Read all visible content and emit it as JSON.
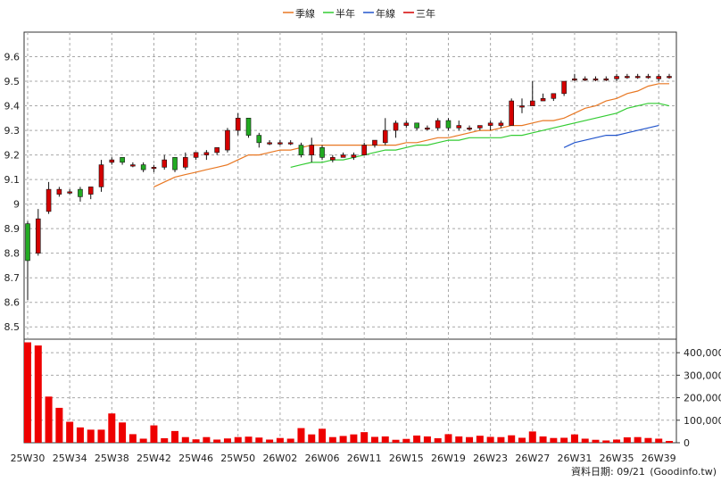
{
  "footer": {
    "date_label": "資料日期: 09/21",
    "source": "(Goodinfo.tw)"
  },
  "colors": {
    "up": "#d40000",
    "down": "#22aa22",
    "quarter": "#e87722",
    "half": "#33cc33",
    "year": "#2255cc",
    "three": "#d40000",
    "grid": "#a8a8a8",
    "volume": "#ee0000"
  },
  "chart_data": [
    {
      "type": "candlestick",
      "legend": [
        {
          "name": "季線",
          "color": "#e87722"
        },
        {
          "name": "半年",
          "color": "#33cc33"
        },
        {
          "name": "年線",
          "color": "#2255cc"
        },
        {
          "name": "三年",
          "color": "#d40000"
        }
      ],
      "legend_position": "top-center",
      "grid": true,
      "ylim": [
        8.45,
        9.7
      ],
      "yticks": [
        "8.5",
        "8.6",
        "8.7",
        "8.8",
        "8.9",
        "9",
        "9.1",
        "9.2",
        "9.3",
        "9.4",
        "9.5",
        "9.6"
      ],
      "xticks": [
        {
          "index": 0,
          "label": "25W30"
        },
        {
          "index": 4,
          "label": "25W34"
        },
        {
          "index": 8,
          "label": "25W38"
        },
        {
          "index": 12,
          "label": "25W42"
        },
        {
          "index": 16,
          "label": "25W46"
        },
        {
          "index": 20,
          "label": "25W50"
        },
        {
          "index": 24,
          "label": "26W02"
        },
        {
          "index": 28,
          "label": "26W06"
        },
        {
          "index": 32,
          "label": "26W11"
        },
        {
          "index": 36,
          "label": "26W15"
        },
        {
          "index": 40,
          "label": "26W19"
        },
        {
          "index": 44,
          "label": "26W23"
        },
        {
          "index": 48,
          "label": "26W27"
        },
        {
          "index": 52,
          "label": "26W31"
        },
        {
          "index": 56,
          "label": "26W35"
        },
        {
          "index": 60,
          "label": "26W39"
        }
      ],
      "candles": [
        [
          8.92,
          8.93,
          8.61,
          8.77
        ],
        [
          8.8,
          8.98,
          8.79,
          8.94
        ],
        [
          8.97,
          9.09,
          8.96,
          9.06
        ],
        [
          9.04,
          9.07,
          9.03,
          9.06
        ],
        [
          9.05,
          9.06,
          9.04,
          9.05
        ],
        [
          9.06,
          9.07,
          9.01,
          9.03
        ],
        [
          9.04,
          9.07,
          9.02,
          9.07
        ],
        [
          9.07,
          9.18,
          9.05,
          9.16
        ],
        [
          9.17,
          9.19,
          9.16,
          9.18
        ],
        [
          9.19,
          9.19,
          9.16,
          9.17
        ],
        [
          9.16,
          9.17,
          9.15,
          9.16
        ],
        [
          9.16,
          9.17,
          9.13,
          9.14
        ],
        [
          9.15,
          9.16,
          9.13,
          9.15
        ],
        [
          9.15,
          9.2,
          9.14,
          9.18
        ],
        [
          9.19,
          9.19,
          9.13,
          9.14
        ],
        [
          9.15,
          9.21,
          9.14,
          9.19
        ],
        [
          9.19,
          9.21,
          9.18,
          9.21
        ],
        [
          9.2,
          9.22,
          9.18,
          9.21
        ],
        [
          9.21,
          9.23,
          9.2,
          9.23
        ],
        [
          9.22,
          9.31,
          9.21,
          9.3
        ],
        [
          9.3,
          9.37,
          9.28,
          9.35
        ],
        [
          9.35,
          9.35,
          9.27,
          9.28
        ],
        [
          9.28,
          9.29,
          9.23,
          9.25
        ],
        [
          9.25,
          9.26,
          9.24,
          9.25
        ],
        [
          9.25,
          9.26,
          9.24,
          9.25
        ],
        [
          9.25,
          9.26,
          9.24,
          9.25
        ],
        [
          9.24,
          9.25,
          9.19,
          9.2
        ],
        [
          9.2,
          9.27,
          9.17,
          9.24
        ],
        [
          9.23,
          9.24,
          9.18,
          9.19
        ],
        [
          9.18,
          9.2,
          9.17,
          9.19
        ],
        [
          9.19,
          9.21,
          9.19,
          9.2
        ],
        [
          9.19,
          9.21,
          9.18,
          9.2
        ],
        [
          9.2,
          9.25,
          9.2,
          9.24
        ],
        [
          9.24,
          9.26,
          9.23,
          9.26
        ],
        [
          9.25,
          9.35,
          9.24,
          9.3
        ],
        [
          9.3,
          9.34,
          9.27,
          9.33
        ],
        [
          9.32,
          9.34,
          9.31,
          9.33
        ],
        [
          9.33,
          9.33,
          9.3,
          9.31
        ],
        [
          9.31,
          9.32,
          9.3,
          9.31
        ],
        [
          9.31,
          9.35,
          9.3,
          9.34
        ],
        [
          9.34,
          9.35,
          9.3,
          9.31
        ],
        [
          9.31,
          9.34,
          9.3,
          9.32
        ],
        [
          9.31,
          9.32,
          9.3,
          9.31
        ],
        [
          9.31,
          9.32,
          9.3,
          9.32
        ],
        [
          9.32,
          9.34,
          9.3,
          9.33
        ],
        [
          9.32,
          9.34,
          9.31,
          9.33
        ],
        [
          9.32,
          9.43,
          9.32,
          9.42
        ],
        [
          9.4,
          9.43,
          9.37,
          9.4
        ],
        [
          9.4,
          9.5,
          9.4,
          9.42
        ],
        [
          9.42,
          9.45,
          9.42,
          9.43
        ],
        [
          9.43,
          9.45,
          9.42,
          9.45
        ],
        [
          9.45,
          9.5,
          9.44,
          9.5
        ],
        [
          9.51,
          9.53,
          9.5,
          9.51
        ],
        [
          9.51,
          9.52,
          9.5,
          9.51
        ],
        [
          9.51,
          9.52,
          9.5,
          9.51
        ],
        [
          9.51,
          9.52,
          9.5,
          9.51
        ],
        [
          9.51,
          9.53,
          9.5,
          9.52
        ],
        [
          9.52,
          9.53,
          9.51,
          9.52
        ],
        [
          9.52,
          9.53,
          9.51,
          9.52
        ],
        [
          9.52,
          9.53,
          9.51,
          9.52
        ],
        [
          9.51,
          9.53,
          9.5,
          9.52
        ],
        [
          9.52,
          9.53,
          9.51,
          9.52
        ]
      ],
      "ma": {
        "季線": {
          "start": 12,
          "values": [
            9.07,
            9.09,
            9.11,
            9.12,
            9.13,
            9.14,
            9.15,
            9.16,
            9.18,
            9.2,
            9.2,
            9.21,
            9.22,
            9.22,
            9.23,
            9.24,
            9.24,
            9.24,
            9.24,
            9.24,
            9.24,
            9.24,
            9.24,
            9.24,
            9.25,
            9.25,
            9.26,
            9.27,
            9.27,
            9.28,
            9.29,
            9.3,
            9.3,
            9.31,
            9.32,
            9.32,
            9.33,
            9.34,
            9.34,
            9.35,
            9.37,
            9.39,
            9.4,
            9.42,
            9.43,
            9.45,
            9.46,
            9.48,
            9.49,
            9.49
          ]
        },
        "半年": {
          "start": 25,
          "values": [
            9.15,
            9.16,
            9.17,
            9.17,
            9.18,
            9.18,
            9.19,
            9.2,
            9.21,
            9.22,
            9.22,
            9.23,
            9.24,
            9.24,
            9.25,
            9.26,
            9.26,
            9.27,
            9.27,
            9.27,
            9.27,
            9.28,
            9.28,
            9.29,
            9.3,
            9.31,
            9.32,
            9.33,
            9.34,
            9.35,
            9.36,
            9.37,
            9.39,
            9.4,
            9.41,
            9.41,
            9.4
          ]
        },
        "年線": {
          "start": 51,
          "values": [
            9.23,
            9.25,
            9.26,
            9.27,
            9.28,
            9.28,
            9.29,
            9.3,
            9.31,
            9.32
          ]
        }
      }
    },
    {
      "type": "bar",
      "series": "volume",
      "ylim": [
        0,
        460000
      ],
      "yticks": [
        "0",
        "100,000",
        "200,000",
        "300,000",
        "400,000"
      ],
      "values": [
        446000,
        432000,
        205000,
        155000,
        93000,
        68000,
        58000,
        58000,
        130000,
        90000,
        38000,
        18000,
        77000,
        20000,
        52000,
        25000,
        15000,
        25000,
        14000,
        19000,
        25000,
        27000,
        23000,
        14000,
        21000,
        18000,
        65000,
        37000,
        62000,
        25000,
        30000,
        37000,
        47000,
        26000,
        28000,
        13000,
        17000,
        32000,
        28000,
        20000,
        38000,
        28000,
        25000,
        31000,
        26000,
        25000,
        33000,
        22000,
        50000,
        28000,
        21000,
        22000,
        37000,
        18000,
        13000,
        10000,
        14000,
        24000,
        25000,
        21000,
        18000,
        8000
      ]
    }
  ]
}
